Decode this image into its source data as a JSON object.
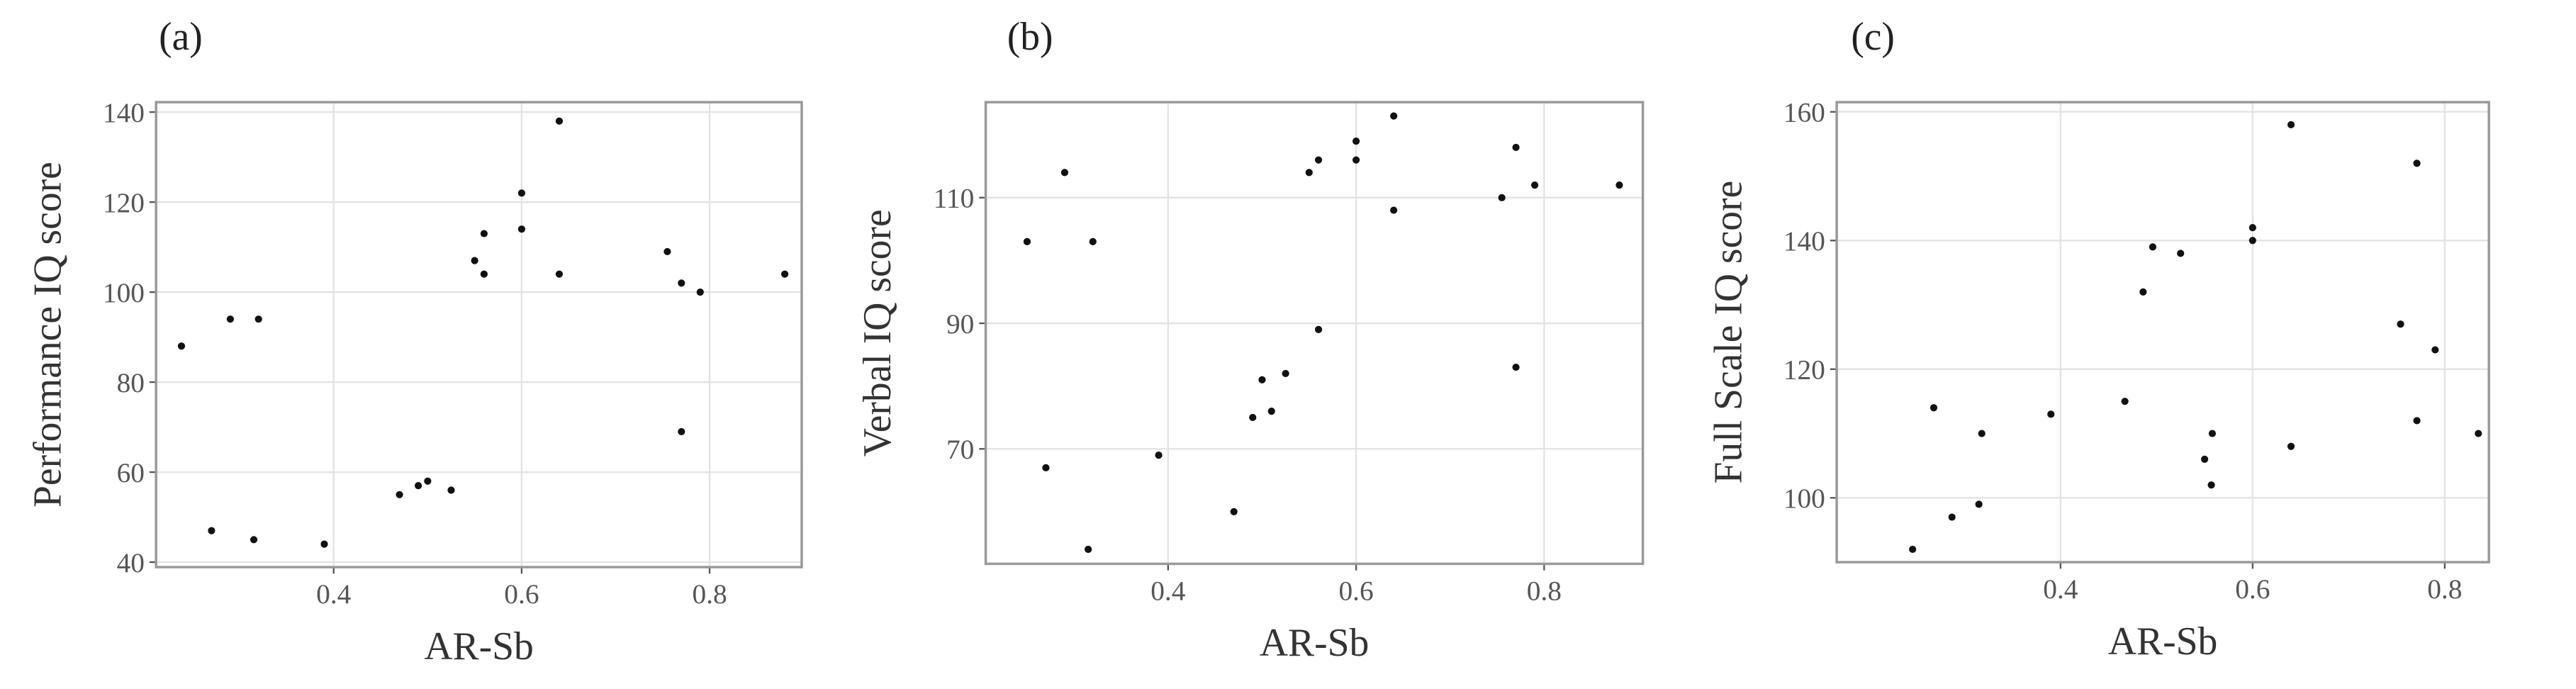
{
  "chart_data": [
    {
      "type": "scatter",
      "label": "(a)",
      "x_label": "AR-Sb",
      "y_label": "Performance IQ score",
      "color": "#111111",
      "grid": true,
      "x": [
        0.238,
        0.27,
        0.29,
        0.315,
        0.32,
        0.39,
        0.47,
        0.49,
        0.5,
        0.525,
        0.55,
        0.56,
        0.56,
        0.6,
        0.6,
        0.64,
        0.64,
        0.755,
        0.77,
        0.77,
        0.79,
        0.88
      ],
      "y": [
        88,
        47,
        94,
        45,
        94,
        44,
        55,
        57,
        58,
        56,
        107,
        113,
        104,
        122,
        114,
        138,
        104,
        109,
        102,
        69,
        100,
        104
      ],
      "xlim": [
        0.211,
        0.898
      ],
      "ylim": [
        38.9,
        142.2
      ],
      "xticks": [
        0.4,
        0.6,
        0.8
      ],
      "yticks": [
        40,
        60,
        80,
        100,
        120,
        140
      ]
    },
    {
      "type": "scatter",
      "label": "(b)",
      "x_label": "AR-Sb",
      "y_label": "Verbal IQ score",
      "color": "#111111",
      "grid": true,
      "x": [
        0.25,
        0.27,
        0.29,
        0.315,
        0.32,
        0.39,
        0.47,
        0.49,
        0.5,
        0.51,
        0.525,
        0.55,
        0.56,
        0.56,
        0.6,
        0.6,
        0.64,
        0.64,
        0.755,
        0.77,
        0.77,
        0.79,
        0.88
      ],
      "y": [
        103,
        67,
        114,
        54,
        103,
        69,
        60,
        75,
        81,
        76,
        82,
        114,
        116,
        89,
        119,
        116,
        123,
        108,
        110,
        118,
        83,
        112,
        112
      ],
      "xlim": [
        0.206,
        0.905
      ],
      "ylim": [
        51.7,
        125.2
      ],
      "xticks": [
        0.4,
        0.6,
        0.8
      ],
      "yticks": [
        70,
        90,
        110
      ]
    },
    {
      "type": "scatter",
      "label": "(c)",
      "x_label": "AR-Sb",
      "y_label": "Full Scale IQ score",
      "color": "#111111",
      "grid": true,
      "x": [
        0.246,
        0.268,
        0.287,
        0.315,
        0.318,
        0.39,
        0.467,
        0.486,
        0.496,
        0.525,
        0.55,
        0.557,
        0.558,
        0.6,
        0.6,
        0.64,
        0.64,
        0.754,
        0.771,
        0.771,
        0.79,
        0.835
      ],
      "y": [
        92,
        114,
        97,
        99,
        110,
        113,
        115,
        132,
        139,
        138,
        106,
        102,
        110,
        142,
        140,
        158,
        108,
        127,
        152,
        112,
        123,
        110
      ],
      "xlim": [
        0.167,
        0.846
      ],
      "ylim": [
        90,
        161.5
      ],
      "xticks": [
        0.4,
        0.6,
        0.8
      ],
      "yticks": [
        100,
        120,
        140,
        160
      ]
    }
  ]
}
